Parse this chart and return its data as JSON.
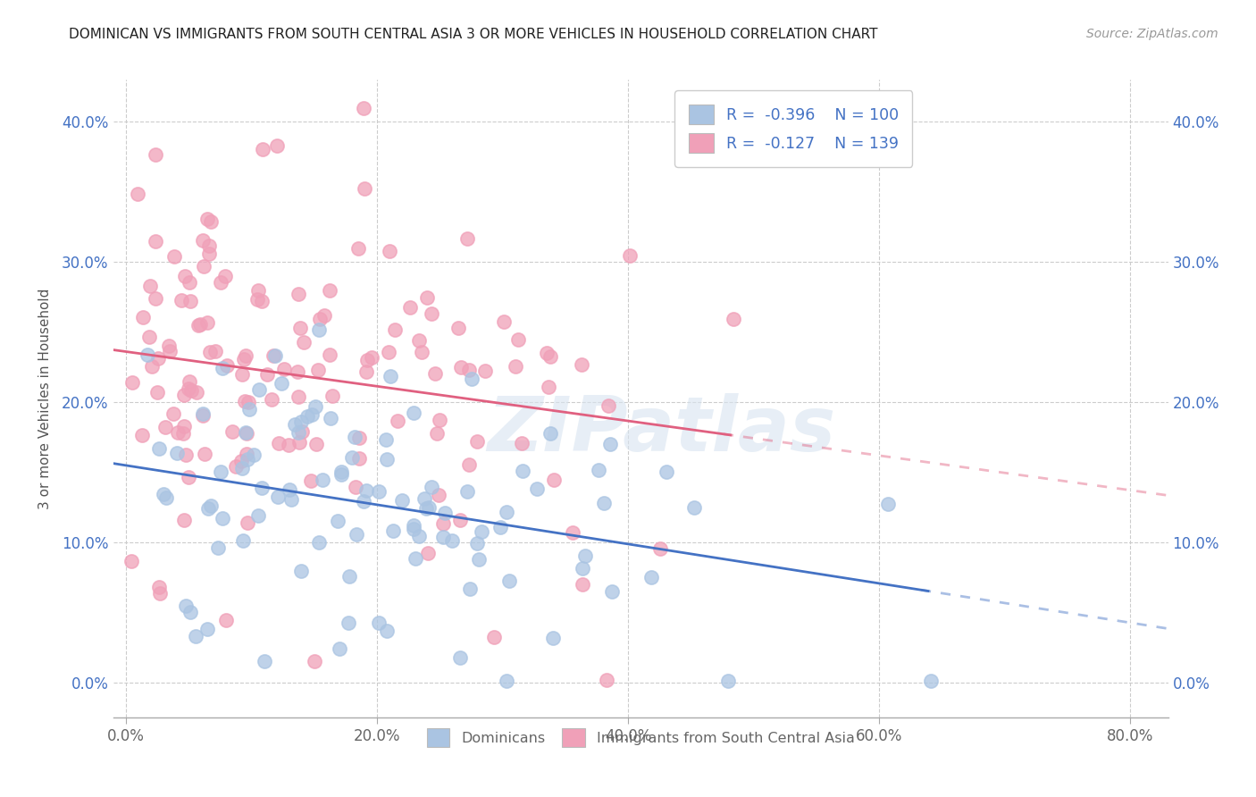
{
  "title": "DOMINICAN VS IMMIGRANTS FROM SOUTH CENTRAL ASIA 3 OR MORE VEHICLES IN HOUSEHOLD CORRELATION CHART",
  "source": "Source: ZipAtlas.com",
  "xlabel_ticks": [
    "0.0%",
    "20.0%",
    "40.0%",
    "60.0%",
    "80.0%"
  ],
  "xlabel_tick_vals": [
    0.0,
    0.2,
    0.4,
    0.6,
    0.8
  ],
  "ylabel": "3 or more Vehicles in Household",
  "ylabel_ticks": [
    "0.0%",
    "10.0%",
    "20.0%",
    "30.0%",
    "40.0%"
  ],
  "ylabel_tick_vals": [
    0.0,
    0.1,
    0.2,
    0.3,
    0.4
  ],
  "xlim": [
    -0.01,
    0.83
  ],
  "ylim": [
    -0.025,
    0.43
  ],
  "blue_marker_color": "#aac4e2",
  "blue_edge_color": "#aac4e2",
  "pink_marker_color": "#f0a0b8",
  "pink_edge_color": "#f0a0b8",
  "blue_line_color": "#4472c4",
  "pink_line_color": "#e06080",
  "blue_R": -0.396,
  "blue_N": 100,
  "pink_R": -0.127,
  "pink_N": 139,
  "blue_seed": 42,
  "pink_seed": 99,
  "watermark": "ZIPatlas",
  "legend_label_blue": "Dominicans",
  "legend_label_pink": "Immigrants from South Central Asia",
  "blue_intercept": 0.155,
  "blue_slope": -0.185,
  "pink_intercept": 0.225,
  "pink_slope": -0.06
}
